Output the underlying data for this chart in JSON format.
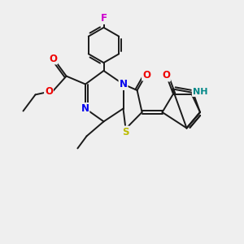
{
  "bg_color": "#efefef",
  "bond_color": "#1a1a1a",
  "bond_width": 1.4,
  "atom_colors": {
    "N": "#0000ee",
    "O": "#ee0000",
    "S": "#bbbb00",
    "F": "#cc00cc",
    "H": "#008888",
    "C": "#1a1a1a"
  },
  "font_size": 8.5,
  "fig_size": [
    3.0,
    3.0
  ],
  "dpi": 100,
  "xlim": [
    0,
    10
  ],
  "ylim": [
    0,
    10
  ]
}
